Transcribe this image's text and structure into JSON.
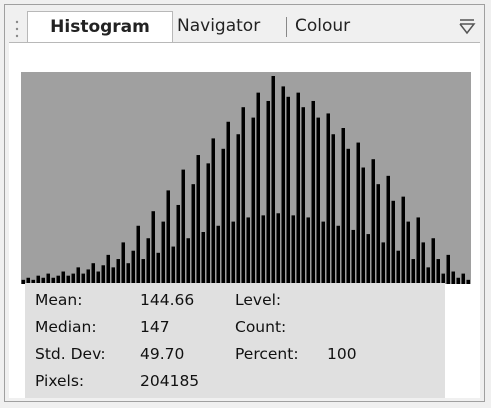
{
  "tabs": [
    "Histogram",
    "Navigator",
    "Colour"
  ],
  "histogram": {
    "type": "bar",
    "ylim": [
      0,
      100
    ],
    "color": "#000000",
    "values": [
      2,
      3,
      2,
      4,
      3,
      5,
      3,
      4,
      6,
      4,
      5,
      8,
      5,
      7,
      10,
      6,
      9,
      14,
      8,
      12,
      20,
      10,
      16,
      28,
      12,
      22,
      35,
      15,
      30,
      45,
      18,
      38,
      55,
      22,
      48,
      62,
      25,
      58,
      70,
      28,
      65,
      78,
      30,
      72,
      85,
      32,
      80,
      92,
      33,
      88,
      100,
      34,
      95,
      90,
      33,
      92,
      85,
      32,
      88,
      80,
      30,
      82,
      72,
      28,
      75,
      65,
      26,
      68,
      56,
      24,
      60,
      48,
      20,
      52,
      40,
      16,
      42,
      30,
      12,
      32,
      20,
      8,
      22,
      12,
      5,
      14,
      6,
      3,
      5,
      2
    ]
  },
  "stats": {
    "rows": [
      [
        "Mean:",
        "144.66",
        "Level:",
        ""
      ],
      [
        "Median:",
        "147",
        "Count:",
        ""
      ],
      [
        "Std. Dev:",
        "49.70",
        "Percent:",
        "100"
      ],
      [
        "Pixels:",
        "204185",
        "",
        ""
      ]
    ]
  }
}
